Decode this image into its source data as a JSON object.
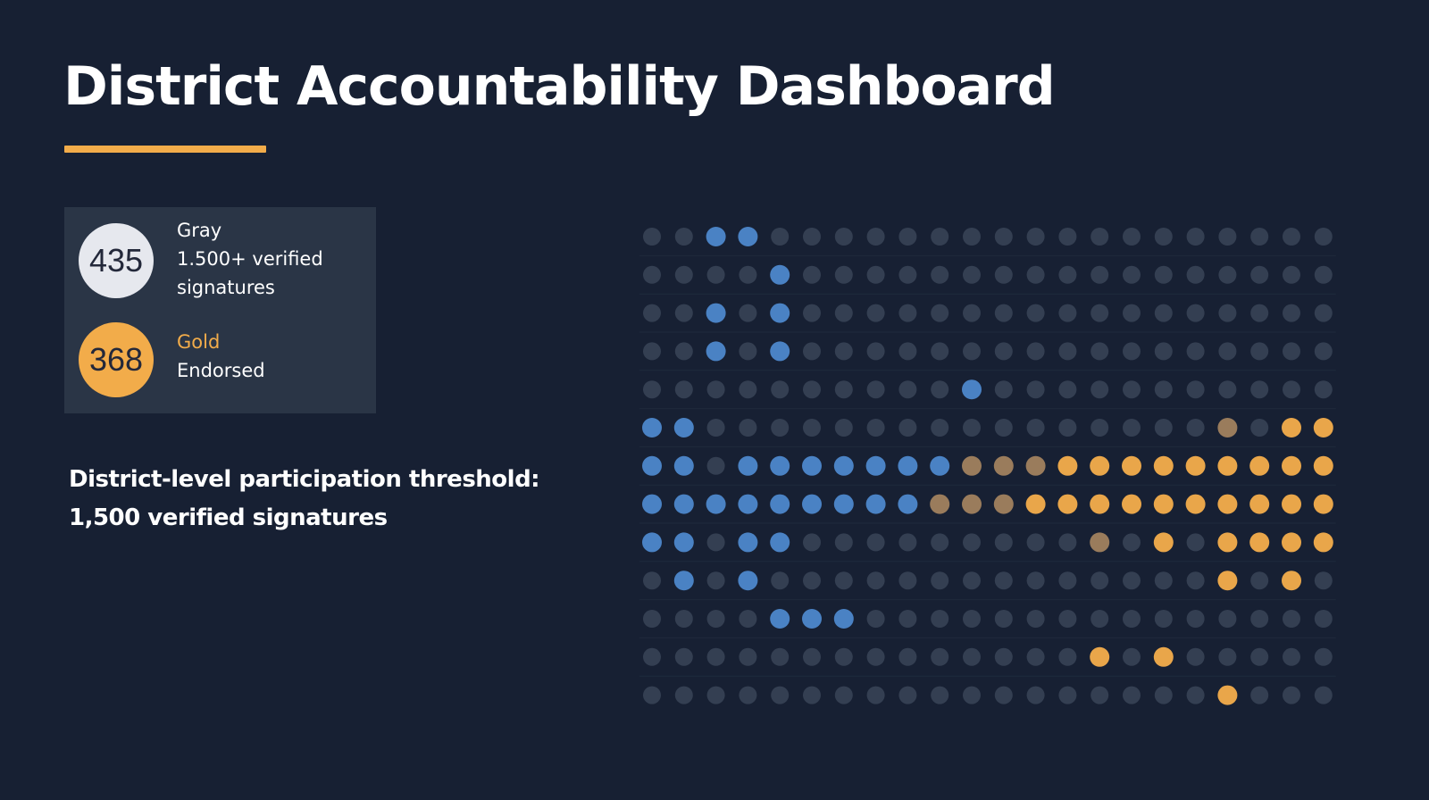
{
  "header": {
    "title": "District Accountability Dashboard",
    "accent_color": "#f2ac4a"
  },
  "legend": {
    "gray": {
      "count": "435",
      "name": "Gray",
      "description": "1.500+ verified signatures",
      "color": "#e6e8ee"
    },
    "gold": {
      "count": "368",
      "name": "Gold",
      "description": "Endorsed",
      "color": "#f2ac4a"
    }
  },
  "threshold": {
    "line1": "District-level participation threshold:",
    "line2": "1,500 verified signatures"
  },
  "dot_grid": {
    "rows": 13,
    "cols": 22,
    "colors": {
      "gray": "#3a4558",
      "blue": "#4a82c4",
      "gold": "#e9a64a",
      "muted_gold": "#9a7c5c"
    },
    "cells": [
      "GGBBGGGGGGGGGGGGGGGGGG",
      "GGGGBGGGGGGGGGGGGGGGGG",
      "GGBGBGGGGGGGGGGGGGGGGG",
      "GGBGBGGGGGGGGGGGGGGGGG",
      "GGGGGGGGGGBGGGGGGGGGGG",
      "BBGGGGGGGGGGGGGGGGMGOO",
      "BBGBBBBBBBMMMOOOOOOOOO",
      "BBBBBBBBBMMMOOOOOOOOOO",
      "BBGBBGGGGGGGGGMGOGOOOO",
      "GBGBGGGGGGGGGGGGGGOGOG",
      "GGGGBBBGGGGGGGGGGGGGGG",
      "GGGGGGGGGGGGGGOGOGGGGG",
      "GGGGGGGGGGGGGGGGGGOGGG"
    ]
  }
}
